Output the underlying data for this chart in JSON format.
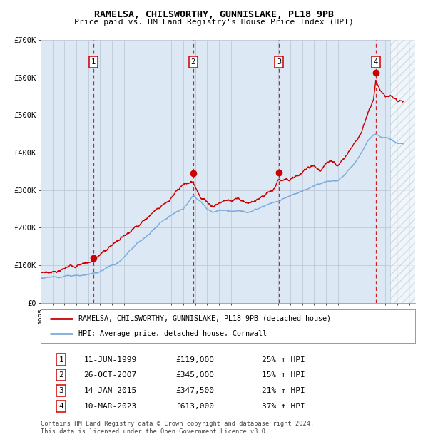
{
  "title": "RAMELSA, CHILSWORTHY, GUNNISLAKE, PL18 9PB",
  "subtitle": "Price paid vs. HM Land Registry's House Price Index (HPI)",
  "background_color": "#dce9f5",
  "grid_color": "#c0c8d8",
  "red_line_color": "#cc0000",
  "blue_line_color": "#7aaadd",
  "xmin": 1995.0,
  "xmax": 2026.5,
  "ymin": 0,
  "ymax": 700000,
  "yticks": [
    0,
    100000,
    200000,
    300000,
    400000,
    500000,
    600000,
    700000
  ],
  "ytick_labels": [
    "£0",
    "£100K",
    "£200K",
    "£300K",
    "£400K",
    "£500K",
    "£600K",
    "£700K"
  ],
  "xticks": [
    1995,
    1996,
    1997,
    1998,
    1999,
    2000,
    2001,
    2002,
    2003,
    2004,
    2005,
    2006,
    2007,
    2008,
    2009,
    2010,
    2011,
    2012,
    2013,
    2014,
    2015,
    2016,
    2017,
    2018,
    2019,
    2020,
    2021,
    2022,
    2023,
    2024,
    2025,
    2026
  ],
  "sales": [
    {
      "num": 1,
      "date": "11-JUN-1999",
      "x": 1999.44,
      "price": 119000,
      "pct": "25% ↑ HPI"
    },
    {
      "num": 2,
      "date": "26-OCT-2007",
      "x": 2007.82,
      "price": 345000,
      "pct": "15% ↑ HPI"
    },
    {
      "num": 3,
      "date": "14-JAN-2015",
      "x": 2015.04,
      "price": 347500,
      "pct": "21% ↑ HPI"
    },
    {
      "num": 4,
      "date": "10-MAR-2023",
      "x": 2023.19,
      "price": 613000,
      "pct": "37% ↑ HPI"
    }
  ],
  "legend_line1": "RAMELSA, CHILSWORTHY, GUNNISLAKE, PL18 9PB (detached house)",
  "legend_line2": "HPI: Average price, detached house, Cornwall",
  "footer1": "Contains HM Land Registry data © Crown copyright and database right 2024.",
  "footer2": "This data is licensed under the Open Government Licence v3.0.",
  "hatch_start": 2024.42
}
